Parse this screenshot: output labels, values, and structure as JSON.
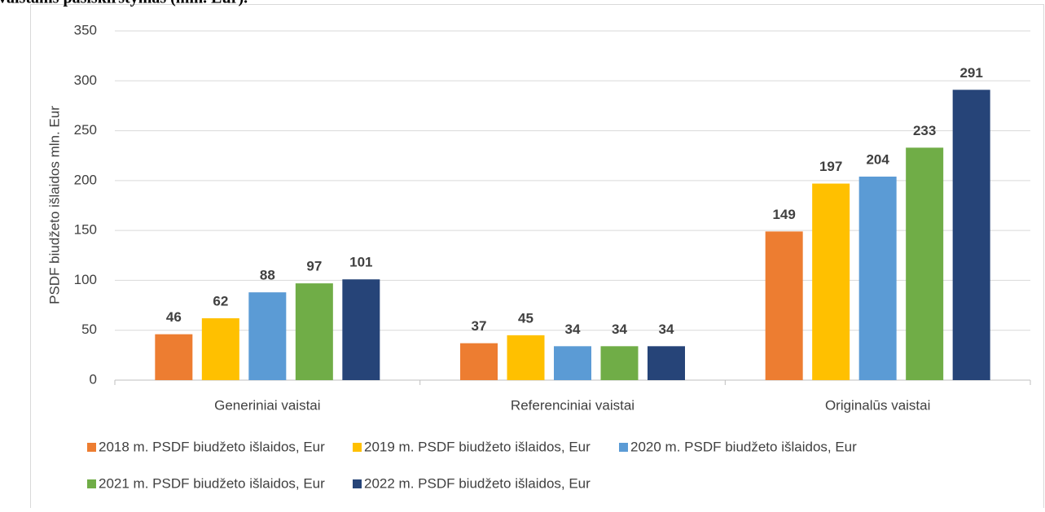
{
  "chart_data": {
    "type": "bar",
    "title": "vaistams pasiskirstymas (mln. Eur).",
    "y_label": "PSDF biudžeto išlaidos mln. Eur",
    "categories": [
      "Generiniai vaistai",
      "Referenciniai vaistai",
      "Originalūs vaistai"
    ],
    "series": [
      {
        "name": "2018 m. PSDF biudžeto išlaidos, Eur",
        "color": "#ed7d31",
        "values": [
          46,
          37,
          149
        ]
      },
      {
        "name": "2019 m. PSDF biudžeto išlaidos, Eur",
        "color": "#ffc000",
        "values": [
          62,
          45,
          197
        ]
      },
      {
        "name": "2020 m. PSDF biudžeto išlaidos, Eur",
        "color": "#5b9bd5",
        "values": [
          88,
          34,
          204
        ]
      },
      {
        "name": "2021 m. PSDF biudžeto išlaidos, Eur",
        "color": "#70ad47",
        "values": [
          97,
          34,
          233
        ]
      },
      {
        "name": "2022 m. PSDF biudžeto išlaidos, Eur",
        "color": "#264478",
        "values": [
          101,
          34,
          291
        ]
      }
    ],
    "ylim": [
      0,
      350
    ],
    "yticks": [
      0,
      50,
      100,
      150,
      200,
      250,
      300,
      350
    ],
    "grid": true,
    "legend": "bottom"
  }
}
